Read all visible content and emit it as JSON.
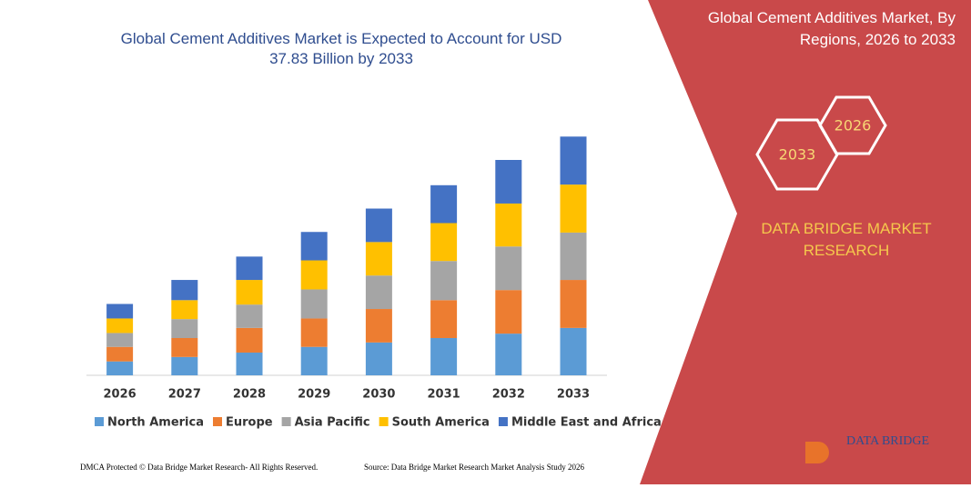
{
  "chart_data": {
    "type": "stacked-bar",
    "title": "Global Cement Additives Market is Expected to Account for USD 37.83 Billion by 2033",
    "categories": [
      "2026",
      "2027",
      "2028",
      "2029",
      "2030",
      "2031",
      "2032",
      "2033"
    ],
    "series": [
      {
        "name": "North America",
        "color": "#5b9bd5",
        "values": [
          2.2,
          2.9,
          3.6,
          4.5,
          5.2,
          5.9,
          6.6,
          7.5
        ]
      },
      {
        "name": "Europe",
        "color": "#ed7d31",
        "values": [
          2.3,
          3.0,
          3.9,
          4.5,
          5.3,
          6.0,
          6.9,
          7.6
        ]
      },
      {
        "name": "Asia Pacific",
        "color": "#a5a5a5",
        "values": [
          2.2,
          3.0,
          3.7,
          4.6,
          5.3,
          6.2,
          6.9,
          7.5
        ]
      },
      {
        "name": "South America",
        "color": "#ffc000",
        "values": [
          2.3,
          3.0,
          3.9,
          4.6,
          5.3,
          6.0,
          6.8,
          7.6
        ]
      },
      {
        "name": "Middle East and Africa",
        "color": "#4472c4",
        "values": [
          2.3,
          3.2,
          3.7,
          4.5,
          5.3,
          6.0,
          6.9,
          7.6
        ]
      }
    ],
    "ylim": [
      0,
      40
    ]
  },
  "panel": {
    "title": "Global Cement Additives Market, By Regions, 2026 to 2033",
    "hex_end": "2033",
    "hex_start": "2026",
    "brand": "DATA BRIDGE MARKET RESEARCH"
  },
  "logo": "DATA BRIDGE",
  "footer": {
    "left": "DMCA Protected © Data Bridge Market Research- All Rights Reserved.",
    "right": "Source: Data Bridge Market Research Market Analysis Study 2026"
  }
}
